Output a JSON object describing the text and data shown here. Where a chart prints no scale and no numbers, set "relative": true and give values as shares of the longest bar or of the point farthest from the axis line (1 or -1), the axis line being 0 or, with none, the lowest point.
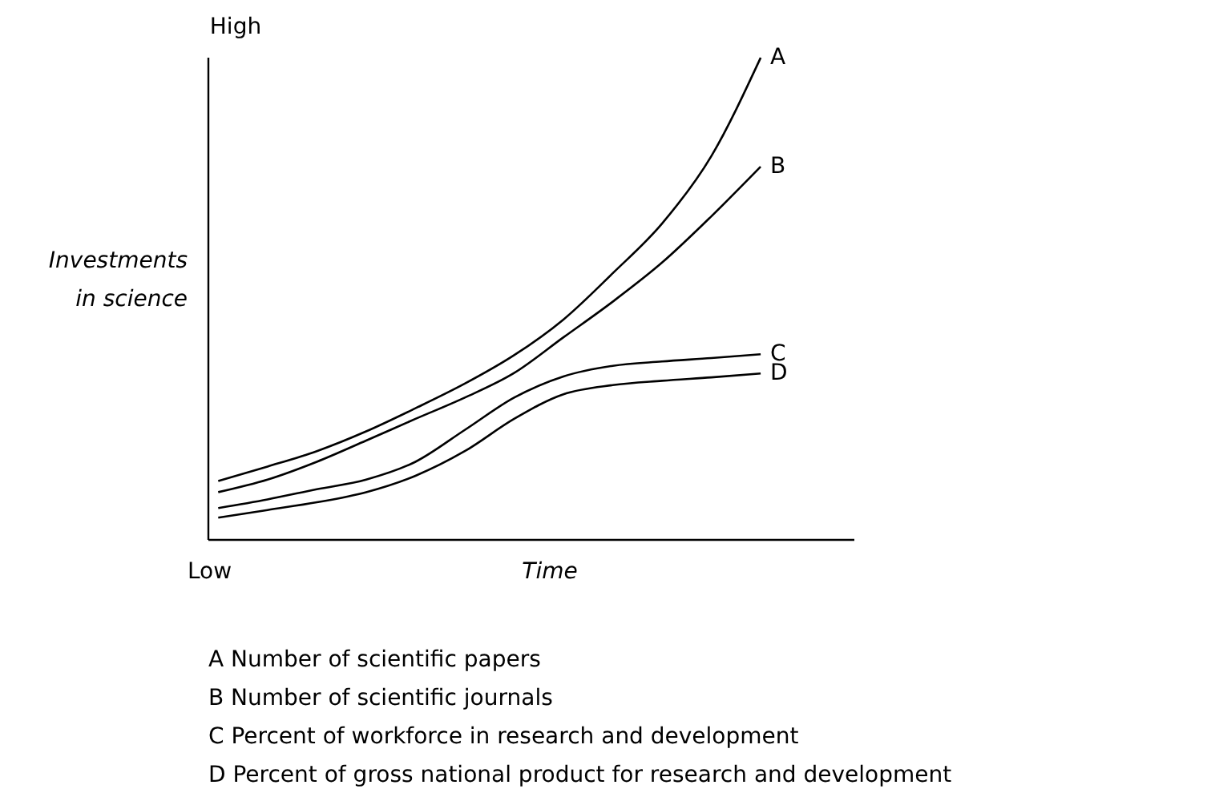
{
  "chart_data": {
    "type": "line",
    "relative": true,
    "xlabel": "Time",
    "ylabel": "Investments\nin science",
    "categories": [
      null,
      null,
      null,
      null,
      null,
      null,
      null,
      null,
      null,
      null,
      null,
      null
    ],
    "series": [
      {
        "name": "A",
        "color": "#000000",
        "values": [
          0.122,
          0.152,
          0.184,
          0.225,
          0.273,
          0.324,
          0.383,
          0.457,
          0.553,
          0.656,
          0.796,
          1
        ]
      },
      {
        "name": "B",
        "color": "#000000",
        "values": [
          0.099,
          0.125,
          0.162,
          0.206,
          0.251,
          0.295,
          0.346,
          0.42,
          0.494,
          0.575,
          0.671,
          0.774
        ]
      },
      {
        "name": "C",
        "color": "#000000",
        "values": [
          0.066,
          0.084,
          0.105,
          0.125,
          0.162,
          0.228,
          0.295,
          0.339,
          0.361,
          0.37,
          0.377,
          0.385
        ]
      },
      {
        "name": "D",
        "color": "#000000",
        "values": [
          0.046,
          0.062,
          0.078,
          0.099,
          0.133,
          0.184,
          0.251,
          0.302,
          0.321,
          0.33,
          0.337,
          0.345
        ]
      }
    ],
    "annotations": [
      "High",
      "Low",
      "A  Number of scientific papers",
      "B  Number of scientific journals",
      "C  Percent of workforce in research and development",
      "D  Percent of gross national product for research and development"
    ]
  }
}
